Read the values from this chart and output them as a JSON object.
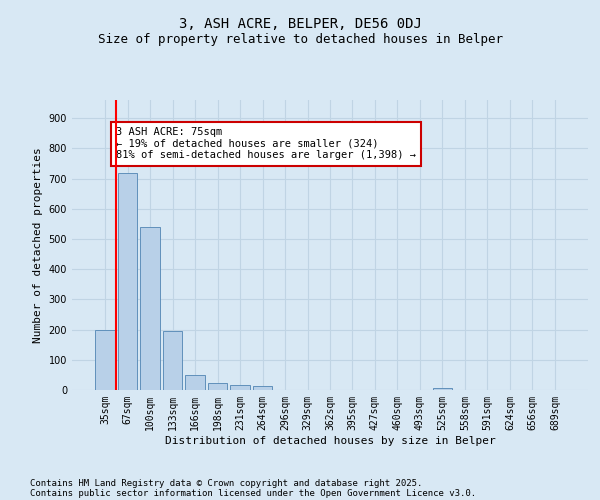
{
  "title_line1": "3, ASH ACRE, BELPER, DE56 0DJ",
  "title_line2": "Size of property relative to detached houses in Belper",
  "xlabel": "Distribution of detached houses by size in Belper",
  "ylabel": "Number of detached properties",
  "categories": [
    "35sqm",
    "67sqm",
    "100sqm",
    "133sqm",
    "166sqm",
    "198sqm",
    "231sqm",
    "264sqm",
    "296sqm",
    "329sqm",
    "362sqm",
    "395sqm",
    "427sqm",
    "460sqm",
    "493sqm",
    "525sqm",
    "558sqm",
    "591sqm",
    "624sqm",
    "656sqm",
    "689sqm"
  ],
  "values": [
    200,
    720,
    540,
    195,
    50,
    22,
    15,
    12,
    0,
    0,
    0,
    0,
    0,
    0,
    0,
    8,
    0,
    0,
    0,
    0,
    0
  ],
  "bar_color": "#b8d0e8",
  "bar_edge_color": "#6090bb",
  "grid_color": "#c0d4e4",
  "background_color": "#d8e8f4",
  "red_line_x": 0.5,
  "annotation_text": "3 ASH ACRE: 75sqm\n← 19% of detached houses are smaller (324)\n81% of semi-detached houses are larger (1,398) →",
  "annotation_box_color": "#ffffff",
  "annotation_box_edge": "#cc0000",
  "ylim": [
    0,
    960
  ],
  "yticks": [
    0,
    100,
    200,
    300,
    400,
    500,
    600,
    700,
    800,
    900
  ],
  "footer_line1": "Contains HM Land Registry data © Crown copyright and database right 2025.",
  "footer_line2": "Contains public sector information licensed under the Open Government Licence v3.0.",
  "title_fontsize": 10,
  "subtitle_fontsize": 9,
  "axis_label_fontsize": 8,
  "tick_fontsize": 7,
  "annotation_fontsize": 7.5,
  "footer_fontsize": 6.5
}
